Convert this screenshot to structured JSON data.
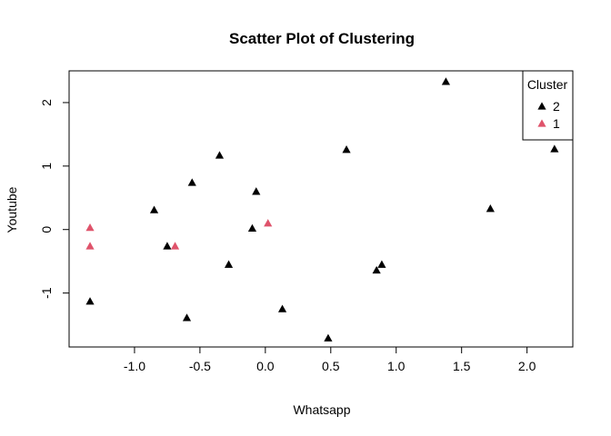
{
  "chart_data": {
    "type": "scatter",
    "title": "Scatter Plot of Clustering",
    "xlabel": "Whatsapp",
    "ylabel": "Youtube",
    "xlim": [
      -1.5,
      2.35
    ],
    "ylim": [
      -1.85,
      2.5
    ],
    "x_ticks": [
      -1.0,
      -0.5,
      0.0,
      0.5,
      1.0,
      1.5,
      2.0
    ],
    "x_tick_labels": [
      "-1.0",
      "-0.5",
      "0.0",
      "0.5",
      "1.0",
      "1.5",
      "2.0"
    ],
    "y_ticks": [
      -1,
      0,
      1,
      2
    ],
    "y_tick_labels": [
      "-1",
      "0",
      "1",
      "2"
    ],
    "grid": false,
    "marker": "triangle",
    "legend": {
      "title": "Cluster",
      "position": "top-right",
      "entries": [
        {
          "label": "2",
          "color": "#000000"
        },
        {
          "label": "1",
          "color": "#DF536B"
        }
      ]
    },
    "series": [
      {
        "name": "2",
        "color": "#000000",
        "points": [
          {
            "x": 1.38,
            "y": 2.33
          },
          {
            "x": 2.21,
            "y": 1.27
          },
          {
            "x": 0.62,
            "y": 1.26
          },
          {
            "x": -0.35,
            "y": 1.17
          },
          {
            "x": -0.56,
            "y": 0.74
          },
          {
            "x": -0.07,
            "y": 0.6
          },
          {
            "x": -0.85,
            "y": 0.31
          },
          {
            "x": 1.72,
            "y": 0.33
          },
          {
            "x": -0.1,
            "y": 0.02
          },
          {
            "x": -0.75,
            "y": -0.26
          },
          {
            "x": -0.28,
            "y": -0.55
          },
          {
            "x": 0.85,
            "y": -0.64
          },
          {
            "x": 0.89,
            "y": -0.55
          },
          {
            "x": -1.34,
            "y": -1.13
          },
          {
            "x": 0.13,
            "y": -1.25
          },
          {
            "x": -0.6,
            "y": -1.39
          },
          {
            "x": 0.48,
            "y": -1.71
          }
        ]
      },
      {
        "name": "1",
        "color": "#DF536B",
        "points": [
          {
            "x": -1.34,
            "y": 0.03
          },
          {
            "x": -1.34,
            "y": -0.26
          },
          {
            "x": -0.69,
            "y": -0.26
          },
          {
            "x": 0.02,
            "y": 0.1
          }
        ]
      }
    ]
  }
}
